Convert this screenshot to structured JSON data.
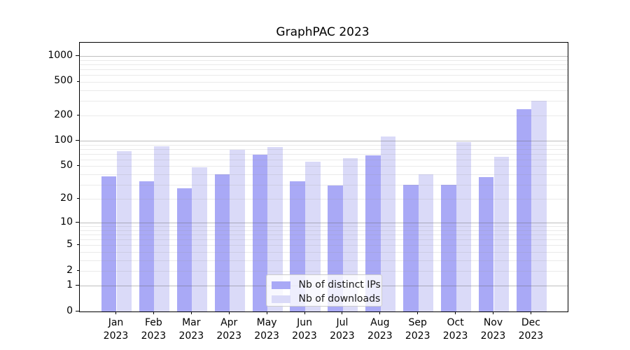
{
  "chart_data": {
    "type": "bar",
    "title": "GraphPAC 2023",
    "categories": [
      "Jan 2023",
      "Feb 2023",
      "Mar 2023",
      "Apr 2023",
      "May 2023",
      "Jun 2023",
      "Jul 2023",
      "Aug 2023",
      "Sep 2023",
      "Oct 2023",
      "Nov 2023",
      "Dec 2023"
    ],
    "series": [
      {
        "name": "Nb of distinct IPs",
        "color": "#a9a9f6",
        "values": [
          38,
          33,
          27,
          40,
          69,
          33,
          29,
          67,
          30,
          30,
          37,
          237
        ]
      },
      {
        "name": "Nb of downloads",
        "color": "#dadaf8",
        "values": [
          75,
          87,
          49,
          79,
          85,
          57,
          62,
          114,
          40,
          97,
          65,
          300
        ]
      }
    ],
    "y_scale": "log1p",
    "y_ticks": [
      0,
      1,
      2,
      5,
      10,
      20,
      50,
      100,
      200,
      500,
      1000
    ],
    "y_major_ticks": [
      0,
      1,
      10,
      100,
      1000
    ],
    "ylim": [
      0,
      1450
    ],
    "xlabel": "",
    "ylabel": "",
    "grid": true,
    "legend_position": "lower center",
    "colors": {
      "grid_major": "#c6c6c6",
      "grid_minor": "#e6e6e6",
      "spine": "#000000",
      "background": "#ffffff"
    }
  }
}
